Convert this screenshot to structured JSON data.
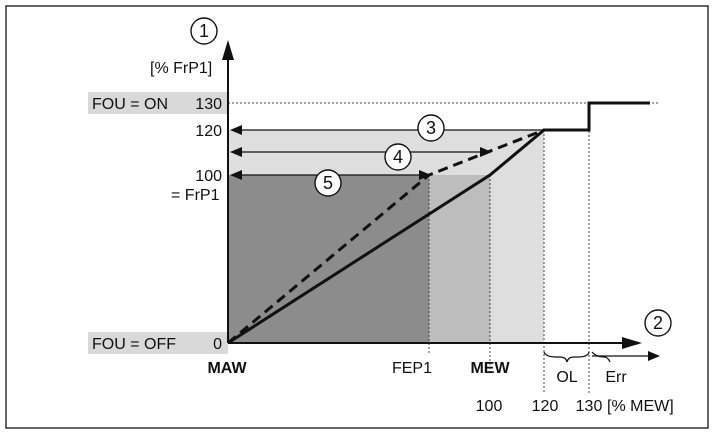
{
  "colors": {
    "frame": "#333333",
    "dark_region": "#8c8c8c",
    "mid_region": "#bdbdbd",
    "light_region": "#dedede",
    "label_band": "#d9d9d9",
    "curve": "#111111"
  },
  "y_axis": {
    "marker": "1",
    "unit": "[% FrP1]",
    "ticks": {
      "t130": "130",
      "t120": "120",
      "t100": "100",
      "t0": "0"
    },
    "frp1_label": "= FrP1",
    "fou_on_label": "FOU = ON",
    "fou_off_label": "FOU = OFF"
  },
  "x_axis": {
    "marker": "2",
    "maw_label": "MAW",
    "fep1_label": "FEP1",
    "mew_label": "MEW",
    "t100": "100",
    "t120": "120",
    "t130": "130",
    "unit": "[% MEW]",
    "ol_label": "OL",
    "err_label": "Err"
  },
  "callouts": {
    "c3": "3",
    "c4": "4",
    "c5": "5"
  },
  "chart_data": {
    "type": "line",
    "x_unit": "% MEW",
    "y_unit": "% FrP1",
    "y_ticks": [
      0,
      100,
      120,
      130
    ],
    "x_ticks": [
      100,
      120,
      130
    ],
    "series": [
      {
        "style": "solid",
        "points": [
          [
            0,
            0
          ],
          [
            100,
            100
          ],
          [
            120,
            120
          ],
          [
            130,
            120
          ],
          [
            130,
            130
          ],
          [
            150,
            130
          ]
        ]
      },
      {
        "style": "dashed",
        "points": [
          [
            0,
            0
          ],
          [
            75,
            100
          ],
          [
            120,
            120
          ]
        ]
      }
    ]
  }
}
